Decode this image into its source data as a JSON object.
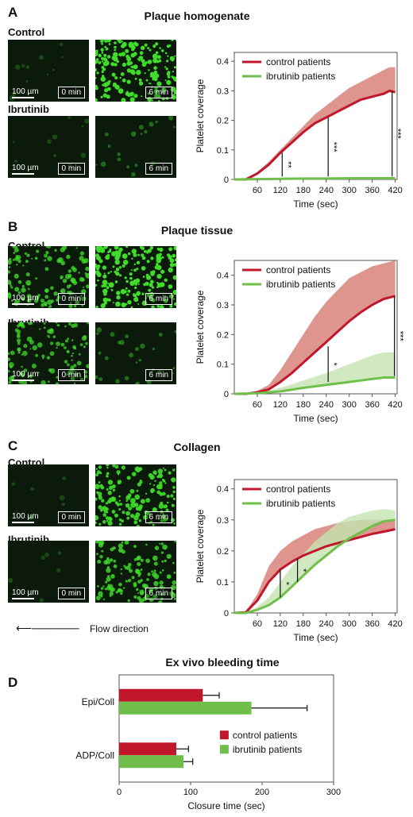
{
  "colors": {
    "control": "#c0172d",
    "control_band": "#d47a70",
    "ibrutinib": "#6fbf4a",
    "ibrutinib_band": "#c6e3b0",
    "micro_bg": "#0c1a0c",
    "micro_dot": "#3fdc2a"
  },
  "panels": [
    {
      "letter": "A",
      "title": "Plaque homogenate",
      "control_label": "Control",
      "ibrutinib_label": "Ibrutinib",
      "images": [
        {
          "time": "0 min",
          "scale": "100 µm",
          "coverage": 0.02
        },
        {
          "time": "6 min",
          "coverage": 0.75
        },
        {
          "time": "0 min",
          "scale": "100 µm",
          "coverage": 0.02
        },
        {
          "time": "6 min",
          "coverage": 0.05
        }
      ]
    },
    {
      "letter": "B",
      "title": "Plaque tissue",
      "control_label": "Control",
      "ibrutinib_label": "Ibrutinib",
      "images": [
        {
          "time": "0 min",
          "scale": "100 µm",
          "coverage": 0.45
        },
        {
          "time": "6 min",
          "coverage": 0.7
        },
        {
          "time": "0 min",
          "scale": "100 µm",
          "coverage": 0.4
        },
        {
          "time": "6 min",
          "coverage": 0.08
        }
      ]
    },
    {
      "letter": "C",
      "title": "Collagen",
      "control_label": "Control",
      "ibrutinib_label": "Ibrutinib",
      "images": [
        {
          "time": "0 min",
          "scale": "100 µm",
          "coverage": 0.0
        },
        {
          "time": "6 min",
          "coverage": 0.6
        },
        {
          "time": "0 min",
          "scale": "100 µm",
          "coverage": 0.0
        },
        {
          "time": "6 min",
          "coverage": 0.5
        }
      ],
      "flow_label": "Flow direction"
    }
  ],
  "chart_data": [
    {
      "type": "line",
      "xlabel": "Time (sec)",
      "ylabel": "Platelet coverage",
      "xlim": [
        0,
        425
      ],
      "ylim": [
        0,
        0.43
      ],
      "xticks": [
        60,
        120,
        180,
        240,
        300,
        360,
        420
      ],
      "yticks": [
        0,
        0.1,
        0.2,
        0.3,
        0.4
      ],
      "legend_position": "top-left",
      "series": [
        {
          "name": "control patients",
          "x": [
            0,
            30,
            60,
            90,
            120,
            150,
            180,
            210,
            240,
            270,
            300,
            330,
            360,
            390,
            405,
            420
          ],
          "values": [
            0,
            0,
            0.02,
            0.05,
            0.09,
            0.125,
            0.16,
            0.19,
            0.21,
            0.23,
            0.25,
            0.27,
            0.28,
            0.29,
            0.3,
            0.295
          ],
          "upper": [
            0,
            0,
            0.025,
            0.06,
            0.1,
            0.14,
            0.18,
            0.22,
            0.25,
            0.28,
            0.31,
            0.33,
            0.35,
            0.37,
            0.38,
            0.38
          ]
        },
        {
          "name": "ibrutinib patients",
          "x": [
            0,
            60,
            120,
            180,
            240,
            300,
            360,
            420
          ],
          "values": [
            0,
            0.001,
            0.002,
            0.003,
            0.003,
            0.004,
            0.004,
            0.004
          ],
          "upper": [
            0,
            0.002,
            0.004,
            0.005,
            0.006,
            0.006,
            0.007,
            0.007
          ]
        }
      ],
      "significance": [
        {
          "x": 125,
          "y_low": 0.01,
          "y_high": 0.09,
          "label": "**"
        },
        {
          "x": 245,
          "y_low": 0.01,
          "y_high": 0.21,
          "label": "***"
        },
        {
          "x": 412,
          "y_low": 0.01,
          "y_high": 0.3,
          "label": "***"
        }
      ]
    },
    {
      "type": "line",
      "xlabel": "Time (sec)",
      "ylabel": "Platelet coverage",
      "xlim": [
        0,
        425
      ],
      "ylim": [
        0,
        0.45
      ],
      "xticks": [
        60,
        120,
        180,
        240,
        300,
        360,
        420
      ],
      "yticks": [
        0,
        0.1,
        0.2,
        0.3,
        0.4
      ],
      "legend_position": "top-left",
      "series": [
        {
          "name": "control patients",
          "x": [
            0,
            30,
            60,
            90,
            120,
            150,
            180,
            210,
            240,
            270,
            300,
            330,
            360,
            390,
            420
          ],
          "values": [
            0,
            0,
            0.005,
            0.015,
            0.04,
            0.07,
            0.105,
            0.14,
            0.175,
            0.21,
            0.245,
            0.275,
            0.3,
            0.32,
            0.33
          ],
          "upper": [
            0,
            0,
            0.01,
            0.03,
            0.08,
            0.14,
            0.2,
            0.26,
            0.31,
            0.35,
            0.39,
            0.41,
            0.43,
            0.44,
            0.45
          ]
        },
        {
          "name": "ibrutinib patients",
          "x": [
            0,
            60,
            120,
            180,
            240,
            300,
            360,
            390,
            420
          ],
          "values": [
            0,
            0.002,
            0.008,
            0.02,
            0.03,
            0.04,
            0.05,
            0.055,
            0.055
          ],
          "upper": [
            0,
            0.005,
            0.02,
            0.045,
            0.07,
            0.1,
            0.13,
            0.14,
            0.14
          ]
        }
      ],
      "significance": [
        {
          "x": 245,
          "y_low": 0.04,
          "y_high": 0.16,
          "label": "*"
        },
        {
          "x": 418,
          "y_low": 0.06,
          "y_high": 0.33,
          "label": "***"
        }
      ]
    },
    {
      "type": "line",
      "xlabel": "Time (sec)",
      "ylabel": "Platelet coverage",
      "xlim": [
        0,
        425
      ],
      "ylim": [
        0,
        0.43
      ],
      "xticks": [
        60,
        120,
        180,
        240,
        300,
        360,
        420
      ],
      "yticks": [
        0,
        0.1,
        0.2,
        0.3,
        0.4
      ],
      "legend_position": "top-left",
      "series": [
        {
          "name": "control patients",
          "x": [
            0,
            30,
            60,
            90,
            120,
            150,
            180,
            210,
            240,
            270,
            300,
            330,
            360,
            390,
            420
          ],
          "values": [
            0,
            0.002,
            0.04,
            0.1,
            0.14,
            0.165,
            0.185,
            0.2,
            0.215,
            0.225,
            0.235,
            0.245,
            0.255,
            0.262,
            0.27
          ],
          "upper": [
            0,
            0.005,
            0.06,
            0.15,
            0.2,
            0.23,
            0.25,
            0.27,
            0.28,
            0.29,
            0.295,
            0.3,
            0.3,
            0.3,
            0.3
          ]
        },
        {
          "name": "ibrutinib patients",
          "x": [
            0,
            30,
            60,
            90,
            120,
            150,
            180,
            210,
            240,
            270,
            300,
            330,
            360,
            390,
            420
          ],
          "values": [
            0,
            0,
            0.01,
            0.025,
            0.05,
            0.085,
            0.12,
            0.155,
            0.185,
            0.215,
            0.24,
            0.26,
            0.28,
            0.295,
            0.3
          ],
          "upper": [
            0,
            0,
            0.02,
            0.05,
            0.1,
            0.15,
            0.19,
            0.23,
            0.26,
            0.29,
            0.31,
            0.32,
            0.33,
            0.335,
            0.33
          ]
        }
      ],
      "significance": [
        {
          "x": 120,
          "y_low": 0.05,
          "y_high": 0.14,
          "label": "*"
        },
        {
          "x": 165,
          "y_low": 0.1,
          "y_high": 0.175,
          "label": "*"
        }
      ]
    },
    {
      "type": "bar",
      "orientation": "horizontal",
      "title": "Ex vivo bleeding time",
      "panel_letter": "D",
      "xlabel": "Closure time (sec)",
      "xlim": [
        0,
        300
      ],
      "xticks": [
        0,
        100,
        200,
        300
      ],
      "categories": [
        "Epi/Coll",
        "ADP/Coll"
      ],
      "legend_position": "right",
      "series": [
        {
          "name": "control patients",
          "values": [
            117,
            80
          ],
          "errors": [
            23,
            17
          ]
        },
        {
          "name": "ibrutinib patients",
          "values": [
            185,
            90
          ],
          "errors": [
            78,
            13
          ]
        }
      ]
    }
  ]
}
